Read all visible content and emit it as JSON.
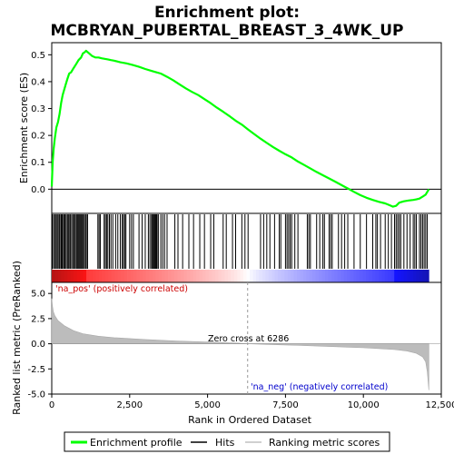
{
  "chart_data": {
    "type": "line",
    "title_line1": "Enrichment plot:",
    "title_line2": "MCBRYAN_PUBERTAL_BREAST_3_4WK_UP",
    "top_panel": {
      "ylabel": "Enrichment score (ES)",
      "yticks": [
        0.0,
        0.1,
        0.2,
        0.3,
        0.4,
        0.5
      ],
      "ytick_labels": [
        "0.0",
        "0.1",
        "0.2",
        "0.3",
        "0.4",
        "0.5"
      ],
      "ylim": [
        -0.09,
        0.545
      ],
      "series": [
        {
          "name": "Enrichment profile",
          "color": "#00ff00",
          "x": [
            0,
            30,
            60,
            100,
            150,
            200,
            250,
            300,
            350,
            400,
            450,
            500,
            560,
            620,
            700,
            780,
            860,
            940,
            1000,
            1060,
            1100,
            1150,
            1200,
            1300,
            1400,
            1500,
            1600,
            1700,
            1800,
            1900,
            2000,
            2200,
            2400,
            2600,
            2800,
            3000,
            3200,
            3350,
            3500,
            3700,
            3900,
            4100,
            4300,
            4500,
            4700,
            4900,
            5100,
            5300,
            5500,
            5700,
            5900,
            6100,
            6300,
            6500,
            6700,
            6900,
            7100,
            7300,
            7500,
            7700,
            7900,
            8100,
            8300,
            8500,
            8700,
            8900,
            9100,
            9300,
            9500,
            9700,
            9900,
            10100,
            10300,
            10500,
            10700,
            10850,
            10950,
            11050,
            11150,
            11300,
            11450,
            11600,
            11700,
            11800,
            11900,
            12000,
            12100
          ],
          "y": [
            0.01,
            0.1,
            0.15,
            0.19,
            0.23,
            0.25,
            0.28,
            0.32,
            0.35,
            0.37,
            0.39,
            0.41,
            0.43,
            0.435,
            0.45,
            0.465,
            0.48,
            0.49,
            0.505,
            0.51,
            0.515,
            0.51,
            0.505,
            0.495,
            0.49,
            0.49,
            0.487,
            0.485,
            0.483,
            0.48,
            0.478,
            0.472,
            0.468,
            0.462,
            0.455,
            0.447,
            0.44,
            0.435,
            0.43,
            0.418,
            0.405,
            0.39,
            0.375,
            0.362,
            0.35,
            0.335,
            0.32,
            0.303,
            0.288,
            0.272,
            0.255,
            0.24,
            0.222,
            0.205,
            0.188,
            0.172,
            0.157,
            0.143,
            0.13,
            0.118,
            0.103,
            0.09,
            0.077,
            0.064,
            0.052,
            0.04,
            0.028,
            0.015,
            0.003,
            -0.01,
            -0.022,
            -0.032,
            -0.04,
            -0.047,
            -0.053,
            -0.06,
            -0.065,
            -0.062,
            -0.05,
            -0.045,
            -0.042,
            -0.04,
            -0.038,
            -0.035,
            -0.028,
            -0.02,
            0.0
          ]
        }
      ]
    },
    "hits_panel": {
      "hit_positions": [
        20,
        60,
        100,
        140,
        175,
        210,
        250,
        290,
        320,
        350,
        390,
        420,
        460,
        500,
        530,
        560,
        600,
        640,
        680,
        720,
        750,
        790,
        820,
        850,
        880,
        910,
        940,
        970,
        1000,
        1040,
        1080,
        1110,
        1150,
        1480,
        1520,
        1560,
        1680,
        1720,
        1760,
        1800,
        1850,
        1900,
        1960,
        2050,
        2120,
        2200,
        2260,
        2300,
        2340,
        2380,
        2500,
        2560,
        2620,
        2800,
        2900,
        3000,
        3100,
        3150,
        3200,
        3230,
        3260,
        3290,
        3320,
        3350,
        3380,
        3420,
        3500,
        3560,
        3620,
        3700,
        3950,
        4050,
        4200,
        4400,
        4550,
        4750,
        4900,
        5100,
        5200,
        5500,
        5600,
        5800,
        5900,
        6100,
        6200,
        6300,
        6700,
        6800,
        6900,
        7000,
        7150,
        7300,
        7350,
        7500,
        7550,
        7600,
        7650,
        7700,
        7800,
        7900,
        8200,
        8250,
        8300,
        8500,
        8600,
        8700,
        8750,
        8900,
        8950,
        9000,
        9200,
        9300,
        9400,
        9500,
        9700,
        9900,
        10100,
        10300,
        10400,
        10450,
        10550,
        10700,
        10800,
        10900,
        11000,
        11050,
        11100,
        11150,
        11200,
        11300,
        11400,
        11500,
        11600,
        11650,
        11700,
        11800,
        11850,
        11900,
        11950,
        12000,
        12050
      ]
    },
    "metric_panel": {
      "ylabel": "Ranked list metric (PreRanked)",
      "yticks": [
        -5.0,
        -2.5,
        0.0,
        2.5,
        5.0
      ],
      "ytick_labels": [
        "-5.0",
        "-2.5",
        "0.0",
        "2.5",
        "5.0"
      ],
      "ylim": [
        -5.0,
        6.1
      ],
      "metric_x": [
        0,
        20,
        50,
        100,
        200,
        400,
        700,
        1000,
        1500,
        2000,
        3000,
        4000,
        5000,
        6000,
        6286,
        7000,
        8000,
        9000,
        10000,
        10500,
        11000,
        11400,
        11700,
        11900,
        12000,
        12050,
        12100
      ],
      "metric_y": [
        4.5,
        3.8,
        3.2,
        2.8,
        2.3,
        1.8,
        1.3,
        1.0,
        0.75,
        0.6,
        0.42,
        0.28,
        0.17,
        0.06,
        0.0,
        -0.07,
        -0.17,
        -0.28,
        -0.4,
        -0.48,
        -0.58,
        -0.72,
        -0.95,
        -1.3,
        -1.8,
        -2.8,
        -4.6
      ],
      "pos_annotation": "'na_pos' (positively correlated)",
      "neg_annotation": "'na_neg' (negatively correlated)",
      "zero_cross_label": "Zero cross at 6286",
      "zero_cross": 6286,
      "pos_color": "#cc0000",
      "neg_color": "#0000cc"
    },
    "xaxis": {
      "xlabel": "Rank in Ordered Dataset",
      "xticks": [
        0,
        2500,
        5000,
        7500,
        10000,
        12500
      ],
      "xtick_labels": [
        "0",
        "2,500",
        "5,000",
        "7,500",
        "10,000",
        "12,500"
      ],
      "xlim": [
        0,
        12500
      ],
      "n_genes": 12100
    },
    "legend": {
      "items": [
        {
          "label": "Enrichment profile",
          "color": "#00ff00"
        },
        {
          "label": "Hits",
          "color": "#000000"
        },
        {
          "label": "Ranking metric scores",
          "color": "#c0c0c0"
        }
      ]
    }
  }
}
